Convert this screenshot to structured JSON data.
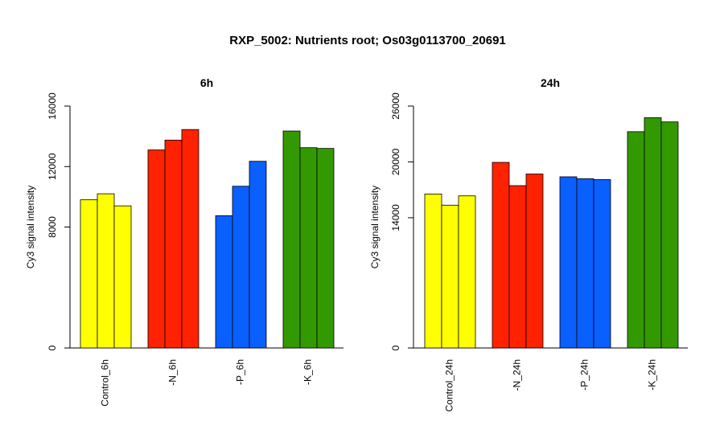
{
  "title": "RXP_5002: Nutrients root; Os03g0113700_20691",
  "chart_data": [
    {
      "type": "bar",
      "title": "6h",
      "ylabel": "Cy3 signal intensity",
      "xlabel": "",
      "ylim": [
        0,
        16000
      ],
      "yticks": [
        0,
        8000,
        12000,
        16000
      ],
      "grid": false,
      "groups": [
        {
          "label": "Control_6h",
          "color": "#ffff00",
          "values": [
            9800,
            10200,
            9400
          ]
        },
        {
          "label": "-N_6h",
          "color": "#ff2200",
          "values": [
            13100,
            13750,
            14450
          ]
        },
        {
          "label": "-P_6h",
          "color": "#0a5fff",
          "values": [
            8750,
            10700,
            12350
          ]
        },
        {
          "label": "-K_6h",
          "color": "#339900",
          "values": [
            14350,
            13250,
            13200
          ]
        }
      ]
    },
    {
      "type": "bar",
      "title": "24h",
      "ylabel": "Cy3 signal intensity",
      "xlabel": "",
      "ylim": [
        0,
        26000
      ],
      "yticks": [
        0,
        14000,
        20000,
        26000
      ],
      "grid": false,
      "groups": [
        {
          "label": "Control_24h",
          "color": "#ffff00",
          "values": [
            16550,
            15350,
            16350
          ]
        },
        {
          "label": "-N_24h",
          "color": "#ff2200",
          "values": [
            19950,
            17450,
            18700
          ]
        },
        {
          "label": "-P_24h",
          "color": "#0a5fff",
          "values": [
            18400,
            18200,
            18100
          ]
        },
        {
          "label": "-K_24h",
          "color": "#339900",
          "values": [
            23250,
            24750,
            24300
          ]
        }
      ]
    }
  ]
}
